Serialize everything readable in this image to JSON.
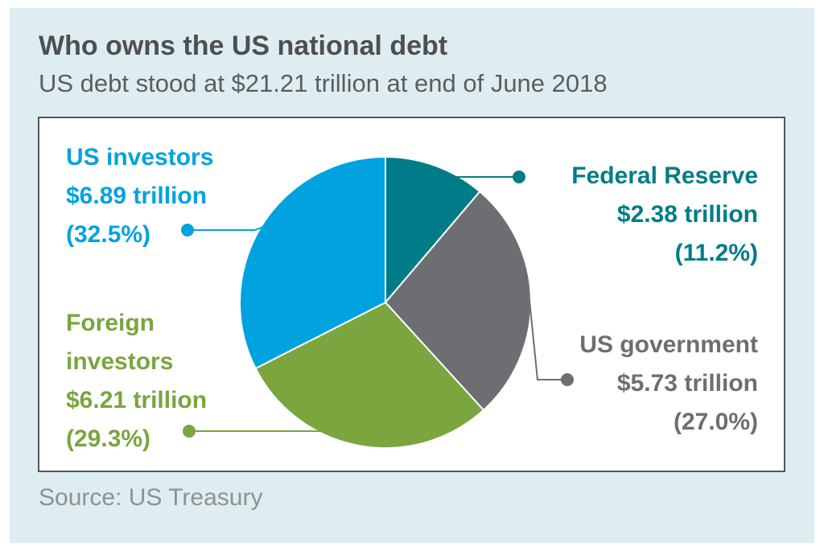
{
  "title": "Who owns the US national debt",
  "subtitle": "US debt stood at $21.21 trillion at end of June 2018",
  "source": "Source: US Treasury",
  "labels": {
    "fed": {
      "name": "Federal Reserve",
      "value": "$2.38 trillion",
      "pct": "(11.2%)"
    },
    "gov": {
      "name": "US government",
      "value": "$5.73 trillion",
      "pct": "(27.0%)"
    },
    "foreign": {
      "name1": "Foreign",
      "name2": "investors",
      "value": "$6.21 trillion",
      "pct": "(29.3%)"
    },
    "us": {
      "name": "US investors",
      "value": "$6.89 trillion",
      "pct": "(32.5%)"
    }
  },
  "chart_data": {
    "type": "pie",
    "title": "Who owns the US national debt",
    "subtitle": "US debt stood at $21.21 trillion at end of June 2018",
    "unit": "trillion",
    "slices": [
      {
        "name": "Federal Reserve",
        "value": 2.38,
        "percent": 11.2,
        "color": "#007c89"
      },
      {
        "name": "US government",
        "value": 5.73,
        "percent": 27.0,
        "color": "#6d6e71"
      },
      {
        "name": "Foreign investors",
        "value": 6.21,
        "percent": 29.3,
        "color": "#7aa53f"
      },
      {
        "name": "US investors",
        "value": 6.89,
        "percent": 32.5,
        "color": "#00a3e0"
      }
    ]
  }
}
